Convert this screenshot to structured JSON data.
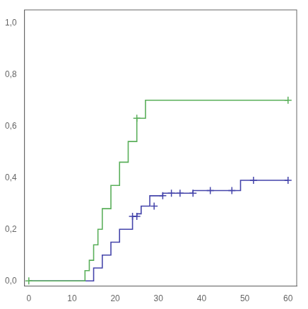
{
  "chart_data": {
    "type": "line",
    "xlim": [
      -1,
      62
    ],
    "ylim": [
      -0.02,
      1.05
    ],
    "xticks": [
      0,
      10,
      20,
      30,
      40,
      50,
      60
    ],
    "yticks": [
      {
        "value": 0.0,
        "label": "0,0"
      },
      {
        "value": 0.2,
        "label": "0,2"
      },
      {
        "value": 0.4,
        "label": "0,4"
      },
      {
        "value": 0.6,
        "label": "0,6"
      },
      {
        "value": 0.8,
        "label": "0,8"
      },
      {
        "value": 1.0,
        "label": "1,0"
      }
    ],
    "grid": false,
    "series": [
      {
        "type": "line",
        "line_style": "step",
        "color": "#5aaf5a",
        "x": [
          0,
          13,
          13,
          14,
          14,
          15,
          15,
          16,
          16,
          17,
          17,
          19,
          19,
          21,
          21,
          23,
          23,
          25,
          25,
          27,
          27,
          29,
          29,
          60
        ],
        "values": [
          0,
          0,
          0.04,
          0.04,
          0.08,
          0.08,
          0.14,
          0.14,
          0.2,
          0.2,
          0.28,
          0.28,
          0.37,
          0.37,
          0.46,
          0.46,
          0.54,
          0.54,
          0.63,
          0.63,
          0.7,
          0.7,
          0.7,
          0.7
        ]
      },
      {
        "type": "line",
        "line_style": "step",
        "color": "#4444aa",
        "x": [
          0,
          15,
          15,
          17,
          17,
          19,
          19,
          21,
          21,
          24,
          24,
          25,
          25,
          26,
          26,
          28,
          28,
          29,
          29,
          31,
          31,
          33,
          33,
          35,
          35,
          38,
          38,
          42,
          42,
          47,
          47,
          49,
          49,
          52,
          52,
          60
        ],
        "values": [
          0,
          0,
          0.05,
          0.05,
          0.1,
          0.1,
          0.15,
          0.15,
          0.2,
          0.2,
          0.25,
          0.25,
          0.26,
          0.26,
          0.29,
          0.29,
          0.33,
          0.33,
          0.33,
          0.33,
          0.34,
          0.34,
          0.34,
          0.34,
          0.34,
          0.34,
          0.35,
          0.35,
          0.35,
          0.35,
          0.35,
          0.35,
          0.39,
          0.39,
          0.39,
          0.39
        ]
      },
      {
        "type": "scatter",
        "marker": "plus",
        "color": "#5aaf5a",
        "x": [
          0,
          25,
          60
        ],
        "values": [
          0,
          0.63,
          0.7
        ]
      },
      {
        "type": "scatter",
        "marker": "plus",
        "color": "#4444aa",
        "x": [
          24,
          25,
          29,
          31,
          33,
          35,
          38,
          42,
          47,
          52,
          60
        ],
        "values": [
          0.25,
          0.25,
          0.29,
          0.33,
          0.34,
          0.34,
          0.34,
          0.35,
          0.35,
          0.39,
          0.39
        ]
      }
    ]
  }
}
